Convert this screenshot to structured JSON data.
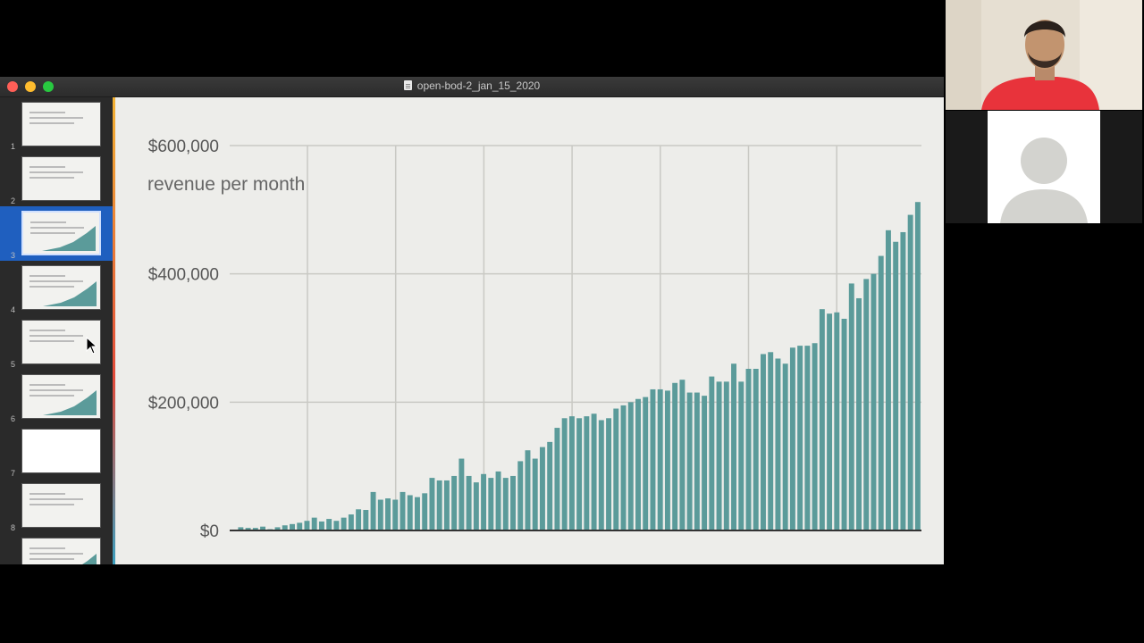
{
  "window": {
    "title": "open-bod-2_jan_15_2020"
  },
  "sidebar": {
    "slides": [
      {
        "number": "1",
        "selected": false
      },
      {
        "number": "2",
        "selected": false
      },
      {
        "number": "3",
        "selected": true
      },
      {
        "number": "4",
        "selected": false
      },
      {
        "number": "5",
        "selected": false
      },
      {
        "number": "6",
        "selected": false
      },
      {
        "number": "7",
        "selected": false
      },
      {
        "number": "8",
        "selected": false
      }
    ]
  },
  "colors": {
    "bar": "#5b9b9a",
    "grid": "#c9c9c4",
    "axis": "#333333"
  },
  "chart_data": {
    "type": "bar",
    "title": "revenue per month",
    "ytick_labels": [
      "$0",
      "$200,000",
      "$400,000",
      "$600,000"
    ],
    "ylim": [
      0,
      600000
    ],
    "grid": true,
    "values": [
      0,
      5000,
      4000,
      4000,
      6000,
      2000,
      5000,
      8000,
      10000,
      12000,
      15000,
      20000,
      14000,
      18000,
      15000,
      20000,
      25000,
      33000,
      32000,
      60000,
      48000,
      50000,
      48000,
      60000,
      55000,
      52000,
      58000,
      82000,
      78000,
      78000,
      85000,
      112000,
      85000,
      75000,
      88000,
      82000,
      92000,
      82000,
      85000,
      108000,
      125000,
      112000,
      130000,
      138000,
      160000,
      175000,
      178000,
      175000,
      178000,
      182000,
      172000,
      175000,
      190000,
      195000,
      200000,
      205000,
      208000,
      220000,
      220000,
      218000,
      230000,
      235000,
      215000,
      215000,
      210000,
      240000,
      232000,
      232000,
      260000,
      232000,
      252000,
      252000,
      275000,
      278000,
      268000,
      260000,
      285000,
      288000,
      288000,
      292000,
      345000,
      338000,
      340000,
      330000,
      385000,
      362000,
      392000,
      400000,
      428000,
      468000,
      450000,
      465000,
      492000,
      512000
    ]
  },
  "video": {
    "participant_icon": "person-silhouette-icon"
  }
}
